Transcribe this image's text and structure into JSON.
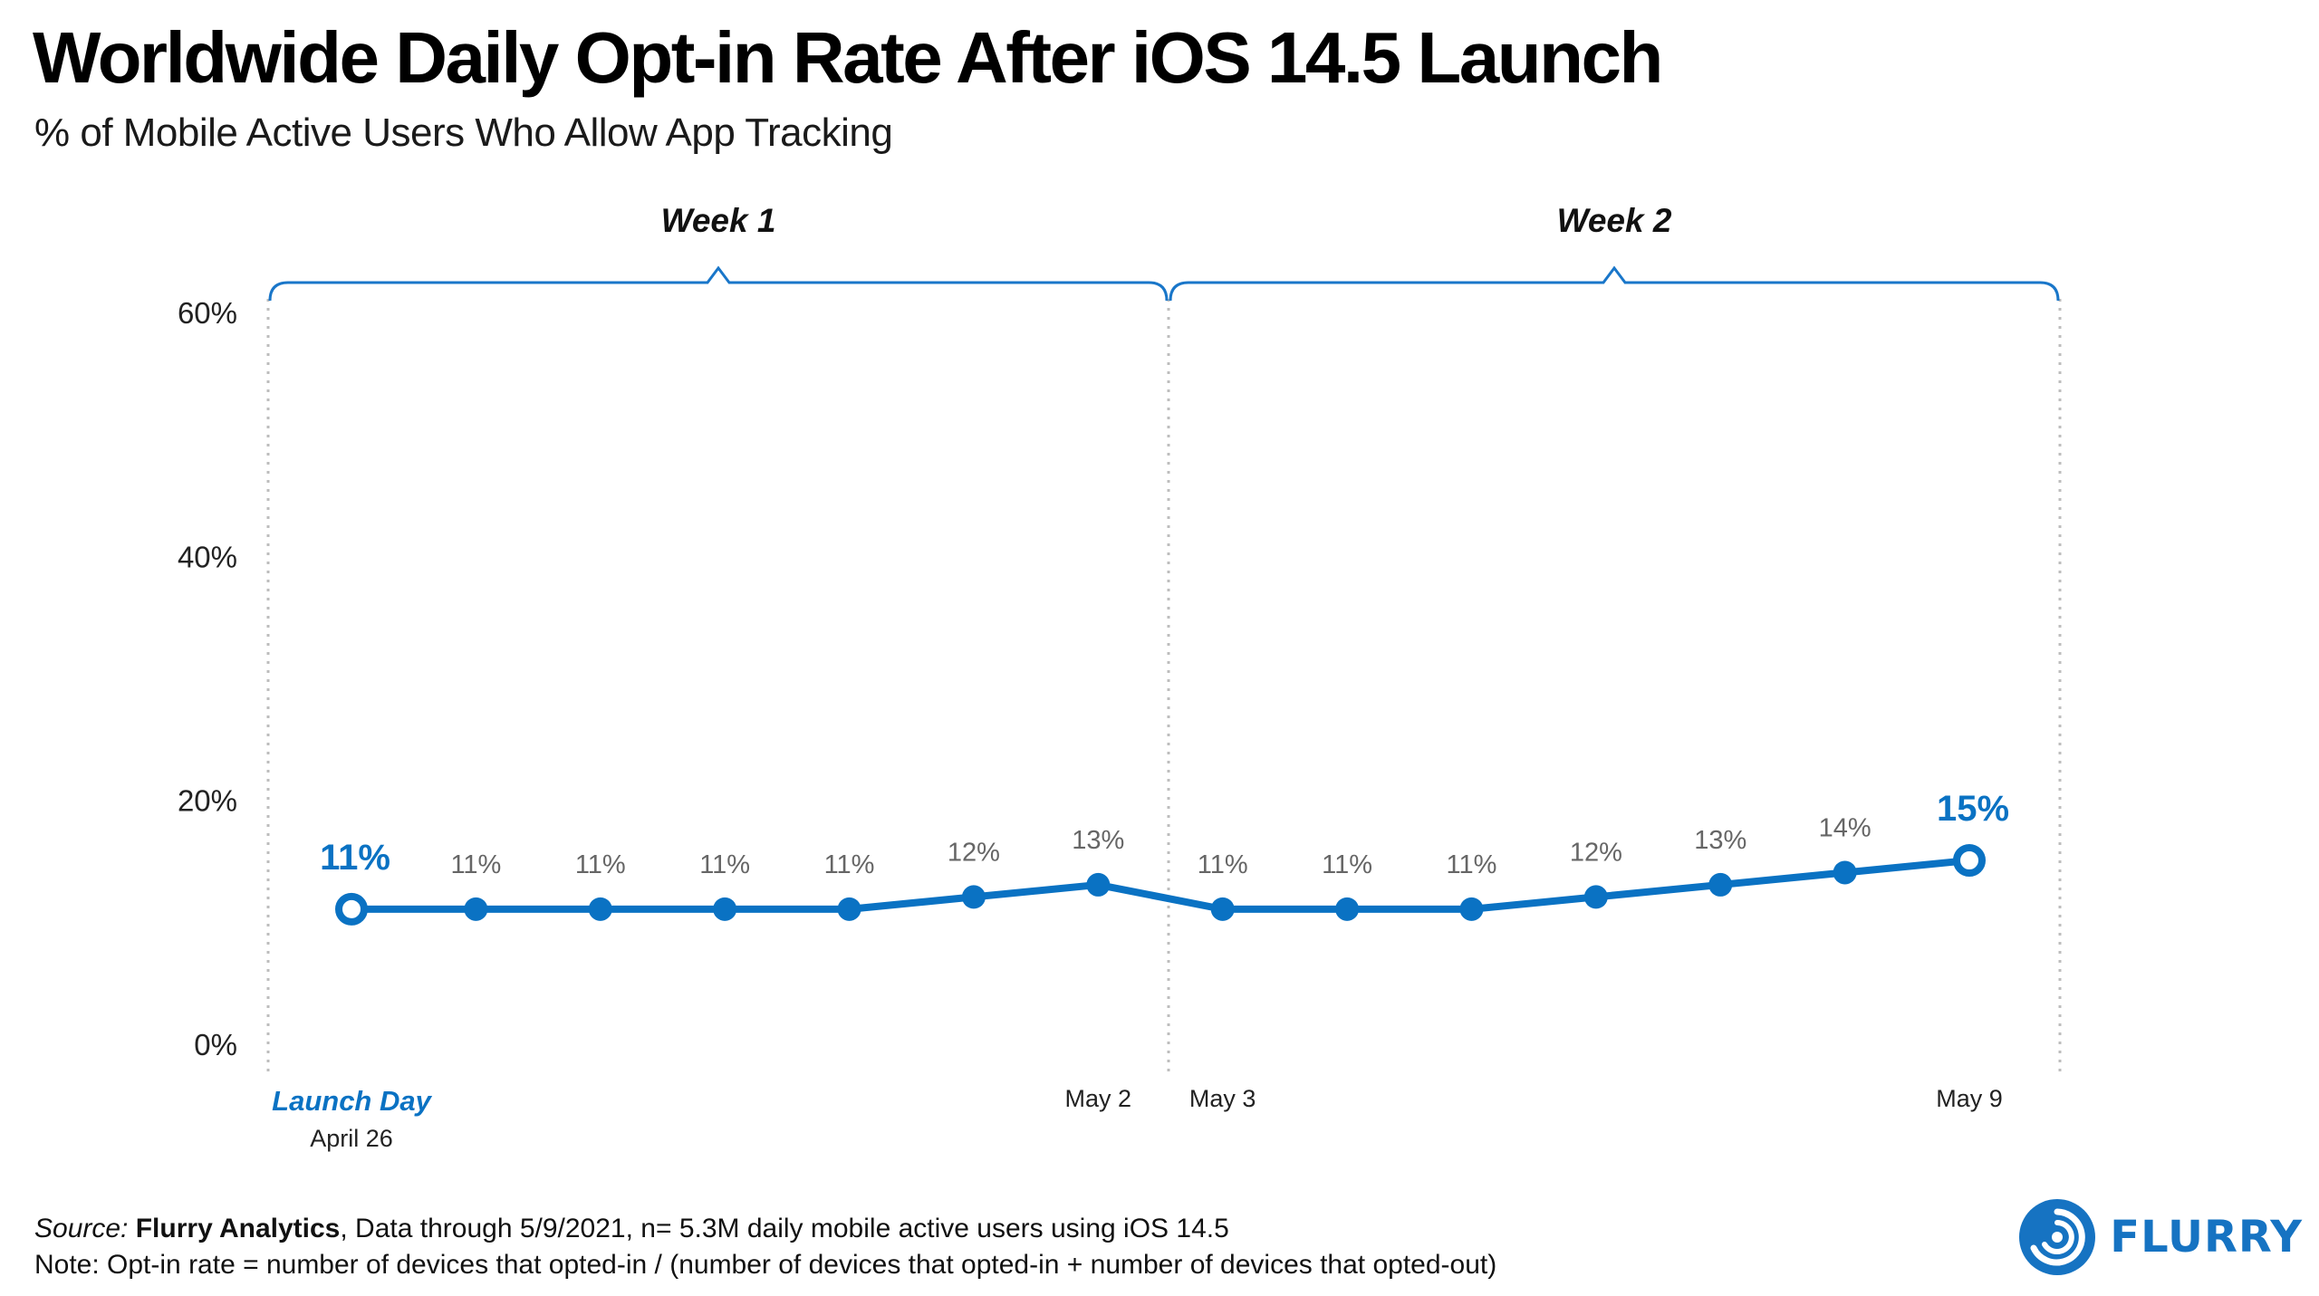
{
  "title": "Worldwide Daily Opt-in Rate After iOS 14.5 Launch",
  "subtitle": "% of Mobile Active Users Who Allow App Tracking",
  "colors": {
    "accent": "#0a72c3",
    "bracket": "#1976c9",
    "label": "#666666",
    "grid": "#bdbdbd"
  },
  "chart_data": {
    "type": "line",
    "title": "Worldwide Daily Opt-in Rate After iOS 14.5 Launch",
    "ylabel": "% of Mobile Active Users Who Allow App Tracking",
    "xlabel": "",
    "ylim": [
      0,
      60
    ],
    "yticks": [
      "0%",
      "20%",
      "40%",
      "60%"
    ],
    "ytick_values": [
      0,
      20,
      40,
      60
    ],
    "day_labels": [
      "Launch Day",
      "",
      "",
      "",
      "",
      "",
      "May 2",
      "May 3",
      "",
      "",
      "",
      "",
      "",
      "May 9"
    ],
    "launch_date": "April 26",
    "values": [
      11,
      11,
      11,
      11,
      11,
      12,
      13,
      11,
      11,
      11,
      12,
      13,
      14,
      15
    ],
    "point_labels": [
      "11%",
      "11%",
      "11%",
      "11%",
      "11%",
      "12%",
      "13%",
      "11%",
      "11%",
      "11%",
      "12%",
      "13%",
      "14%",
      "15%"
    ],
    "weeks": [
      "Week 1",
      "Week 2"
    ]
  },
  "footer": {
    "source_label": "Source:",
    "source_name": "Flurry Analytics",
    "source_rest": ", Data through 5/9/2021, n= 5.3M daily mobile active users using iOS 14.5",
    "note": "Note: Opt-in rate = number of devices that opted-in / (number of devices that opted-in + number of devices that opted-out)"
  },
  "brand": {
    "name": "FLURRY",
    "icon": "flurry-logo-icon"
  }
}
